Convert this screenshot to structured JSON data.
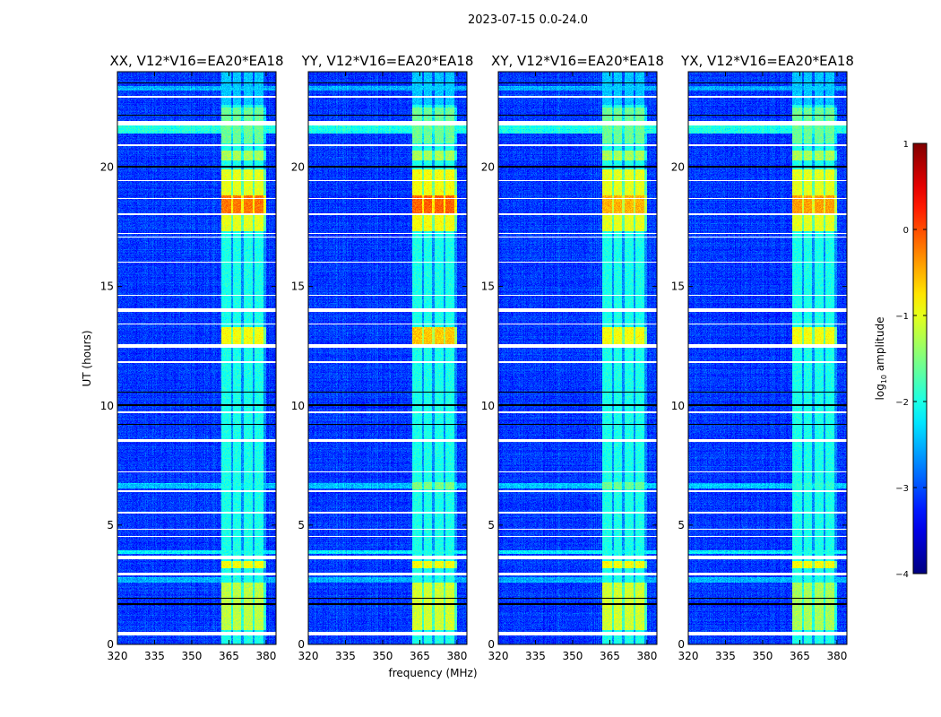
{
  "chart_data": {
    "type": "heatmap",
    "suptitle": "2023-07-15 0.0-24.0",
    "xlabel": "frequency (MHz)",
    "ylabel": "UT (hours)",
    "xlim": [
      320,
      384
    ],
    "ylim": [
      0,
      24
    ],
    "xticks": [
      "320",
      "335",
      "350",
      "365",
      "380"
    ],
    "xtick_values": [
      320,
      335,
      350,
      365,
      380
    ],
    "yticks": [
      "0",
      "5",
      "10",
      "15",
      "20"
    ],
    "ytick_values": [
      0,
      5,
      10,
      15,
      20
    ],
    "panels": [
      {
        "title": "XX, V12*V16=EA20*EA18"
      },
      {
        "title": "YY, V12*V16=EA20*EA18"
      },
      {
        "title": "XY, V12*V16=EA20*EA18"
      },
      {
        "title": "YX, V12*V16=EA20*EA18"
      }
    ],
    "colorbar": {
      "label_main": "log",
      "label_sub": "10",
      "label_rest": " amplitude",
      "colormap": "jet",
      "range": [
        -4,
        1
      ],
      "ticks": [
        "1",
        "0",
        "−1",
        "−2",
        "−3",
        "−4"
      ],
      "tick_values": [
        1,
        0,
        -1,
        -2,
        -3,
        -4
      ]
    },
    "background_level": -3.1,
    "rfi_bands_mhz": [
      [
        362,
        366
      ],
      [
        366.5,
        370
      ],
      [
        371,
        374.5
      ],
      [
        375.5,
        379
      ]
    ],
    "rfi_default_level": -2.0,
    "rfi_segments": [
      {
        "t": [
          0.6,
          2.6
        ],
        "level": [
          -1.2,
          -1.1,
          -1.1,
          -1.3
        ]
      },
      {
        "t": [
          3.2,
          3.5
        ],
        "level": [
          -0.9,
          -0.9,
          -0.9,
          -0.9
        ]
      },
      {
        "t": [
          6.5,
          6.8
        ],
        "level": [
          -2.0,
          -1.5,
          -1.6,
          -1.9
        ]
      },
      {
        "t": [
          12.6,
          13.3
        ],
        "level": [
          -0.9,
          -0.6,
          -0.9,
          -0.9
        ]
      },
      {
        "t": [
          17.3,
          19.9
        ],
        "level": [
          -1.0,
          -0.9,
          -1.0,
          -1.0
        ]
      },
      {
        "t": [
          18.0,
          18.8
        ],
        "level": [
          -0.2,
          -0.1,
          -0.5,
          -0.4
        ]
      },
      {
        "t": [
          20.3,
          20.7
        ],
        "level": [
          -1.3,
          -1.3,
          -1.3,
          -1.3
        ]
      },
      {
        "t": [
          21.0,
          22.5
        ],
        "level": [
          -1.6,
          -1.6,
          -1.6,
          -1.6
        ]
      },
      {
        "t": [
          22.6,
          24.0
        ],
        "level": [
          -2.4,
          -2.4,
          -2.4,
          -2.4
        ]
      }
    ],
    "enhanced_rows": [
      {
        "t": [
          21.4,
          21.75
        ],
        "level": -2.0
      },
      {
        "t": [
          6.55,
          6.75
        ],
        "level": -2.4
      },
      {
        "t": [
          3.8,
          3.95
        ],
        "level": -2.2
      },
      {
        "t": [
          2.6,
          2.8
        ],
        "level": -2.5
      },
      {
        "t": [
          23.2,
          23.4
        ],
        "level": -2.5
      }
    ],
    "blank_rows": [
      [
        0.38,
        0.52
      ],
      [
        2.88,
        3.0
      ],
      [
        3.55,
        3.7
      ],
      [
        12.45,
        12.6
      ],
      [
        13.95,
        14.1
      ],
      [
        21.75,
        21.95
      ],
      [
        22.9,
        23.0
      ],
      [
        18.65,
        18.72
      ],
      [
        17.05,
        17.1
      ],
      [
        17.2,
        17.25
      ],
      [
        16.0,
        16.05
      ],
      [
        14.6,
        14.65
      ],
      [
        13.4,
        13.45
      ],
      [
        11.8,
        11.85
      ],
      [
        9.7,
        9.75
      ],
      [
        8.5,
        8.6
      ],
      [
        7.2,
        7.25
      ],
      [
        6.4,
        6.45
      ],
      [
        5.5,
        5.55
      ],
      [
        4.8,
        4.85
      ],
      [
        4.5,
        4.55
      ],
      [
        19.4,
        19.45
      ],
      [
        20.9,
        20.95
      ],
      [
        18.0,
        18.05
      ]
    ],
    "flagged_rows": [
      [
        1.65,
        1.72
      ],
      [
        1.9,
        1.95
      ],
      [
        10.0,
        10.05
      ],
      [
        10.55,
        10.6
      ],
      [
        20.0,
        20.05
      ],
      [
        22.15,
        22.2
      ],
      [
        23.5,
        23.55
      ],
      [
        9.2,
        9.25
      ]
    ]
  }
}
